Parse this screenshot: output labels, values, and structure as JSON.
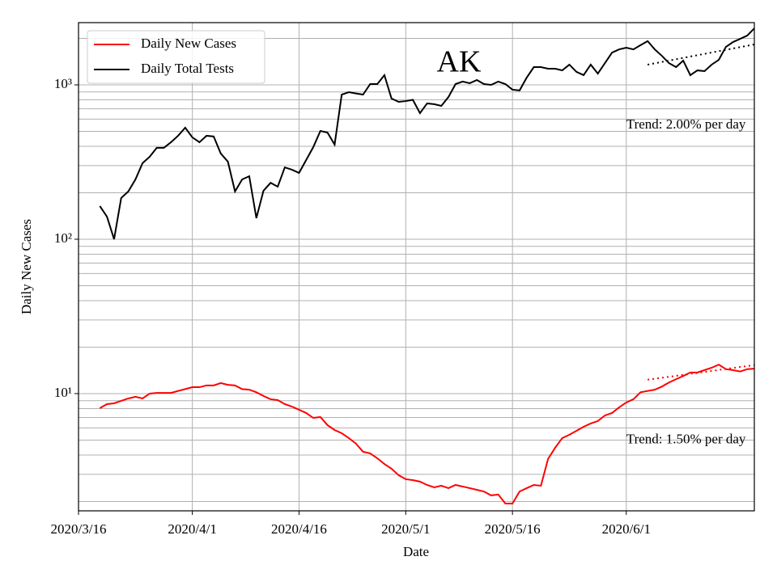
{
  "chart_data": {
    "type": "line",
    "title": "AK",
    "xlabel": "Date",
    "ylabel": "Daily New Cases",
    "x": [
      "2020/3/19",
      "2020/3/20",
      "2020/3/21",
      "2020/3/22",
      "2020/3/23",
      "2020/3/24",
      "2020/3/25",
      "2020/3/26",
      "2020/3/27",
      "2020/3/28",
      "2020/3/29",
      "2020/3/30",
      "2020/3/31",
      "2020/4/1",
      "2020/4/2",
      "2020/4/3",
      "2020/4/4",
      "2020/4/5",
      "2020/4/6",
      "2020/4/7",
      "2020/4/8",
      "2020/4/9",
      "2020/4/10",
      "2020/4/11",
      "2020/4/12",
      "2020/4/13",
      "2020/4/14",
      "2020/4/15",
      "2020/4/16",
      "2020/4/17",
      "2020/4/18",
      "2020/4/19",
      "2020/4/20",
      "2020/4/21",
      "2020/4/22",
      "2020/4/23",
      "2020/4/24",
      "2020/4/25",
      "2020/4/26",
      "2020/4/27",
      "2020/4/28",
      "2020/4/29",
      "2020/4/30",
      "2020/5/1",
      "2020/5/2",
      "2020/5/3",
      "2020/5/4",
      "2020/5/5",
      "2020/5/6",
      "2020/5/7",
      "2020/5/8",
      "2020/5/9",
      "2020/5/10",
      "2020/5/11",
      "2020/5/12",
      "2020/5/13",
      "2020/5/14",
      "2020/5/15",
      "2020/5/16",
      "2020/5/17",
      "2020/5/18",
      "2020/5/19",
      "2020/5/20",
      "2020/5/21",
      "2020/5/22",
      "2020/5/23",
      "2020/5/24",
      "2020/5/25",
      "2020/5/26",
      "2020/5/27",
      "2020/5/28",
      "2020/5/29",
      "2020/5/30",
      "2020/5/31",
      "2020/6/1",
      "2020/6/2",
      "2020/6/3",
      "2020/6/4",
      "2020/6/5",
      "2020/6/6",
      "2020/6/7",
      "2020/6/8",
      "2020/6/9",
      "2020/6/10",
      "2020/6/11",
      "2020/6/12",
      "2020/6/13",
      "2020/6/14",
      "2020/6/15",
      "2020/6/16",
      "2020/6/17",
      "2020/6/18",
      "2020/6/19"
    ],
    "series": [
      {
        "name": "Daily New Cases",
        "color": "#ff0000",
        "values": [
          8.05,
          8.55,
          8.65,
          8.97,
          9.3,
          9.53,
          9.3,
          10.0,
          10.1,
          10.1,
          10.1,
          10.4,
          10.7,
          11.0,
          11.0,
          11.3,
          11.3,
          11.7,
          11.4,
          11.3,
          10.7,
          10.6,
          10.2,
          9.65,
          9.19,
          9.08,
          8.55,
          8.24,
          7.86,
          7.49,
          6.96,
          7.05,
          6.25,
          5.81,
          5.54,
          5.15,
          4.74,
          4.2,
          4.1,
          3.81,
          3.5,
          3.26,
          2.96,
          2.79,
          2.75,
          2.69,
          2.56,
          2.47,
          2.53,
          2.44,
          2.56,
          2.5,
          2.44,
          2.38,
          2.32,
          2.19,
          2.22,
          1.94,
          1.94,
          2.32,
          2.44,
          2.56,
          2.53,
          3.77,
          4.46,
          5.15,
          5.41,
          5.74,
          6.1,
          6.4,
          6.64,
          7.22,
          7.49,
          8.15,
          8.76,
          9.19,
          10.2,
          10.4,
          10.6,
          11.1,
          11.8,
          12.4,
          13.0,
          13.7,
          13.7,
          14.2,
          14.7,
          15.4,
          14.4,
          14.2,
          13.9,
          14.4,
          14.5
        ]
      },
      {
        "name": "Daily Total Tests",
        "color": "#000000",
        "values": [
          164,
          140,
          100,
          185,
          204,
          244,
          311,
          342,
          391,
          391,
          425,
          468,
          528,
          457,
          425,
          468,
          463,
          359,
          318,
          204,
          244,
          256,
          137,
          206,
          232,
          219,
          292,
          282,
          269,
          326,
          395,
          503,
          491,
          410,
          865,
          897,
          880,
          865,
          1012,
          1012,
          1156,
          815,
          776,
          785,
          800,
          656,
          758,
          750,
          731,
          834,
          1012,
          1050,
          1025,
          1075,
          1012,
          1000,
          1050,
          1012,
          931,
          920,
          1114,
          1303,
          1303,
          1273,
          1273,
          1241,
          1352,
          1213,
          1156,
          1352,
          1183,
          1383,
          1618,
          1698,
          1741,
          1698,
          1808,
          1920,
          1698,
          1542,
          1383,
          1303,
          1436,
          1156,
          1241,
          1227,
          1352,
          1452,
          1762,
          1893,
          1987,
          2084,
          2325
        ]
      }
    ],
    "trends": [
      {
        "x": [
          "2020/6/4",
          "2020/6/19"
        ],
        "values": [
          1352,
          1828
        ],
        "color": "#000000",
        "label": "Trend: 2.00% per day"
      },
      {
        "x": [
          "2020/6/4",
          "2020/6/19"
        ],
        "values": [
          12.3,
          15.3
        ],
        "color": "#ff0000",
        "label": "Trend: 1.50% per day"
      }
    ],
    "xlim": [
      "2020/3/16",
      "2020/6/19"
    ],
    "xticks": [
      "2020/3/16",
      "2020/4/1",
      "2020/4/16",
      "2020/5/1",
      "2020/5/16",
      "2020/6/1"
    ],
    "ylim": [
      1.74,
      2530
    ],
    "yscale": "log",
    "yticks": [
      {
        "value": 10,
        "label": "10¹"
      },
      {
        "value": 100,
        "label": "10²"
      },
      {
        "value": 1000,
        "label": "10³"
      }
    ],
    "yminor": [
      2,
      3,
      4,
      5,
      6,
      7,
      8,
      9,
      20,
      30,
      40,
      50,
      60,
      70,
      80,
      90,
      200,
      300,
      400,
      500,
      600,
      700,
      800,
      900,
      2000
    ],
    "grid": true,
    "legend": "upper left"
  }
}
